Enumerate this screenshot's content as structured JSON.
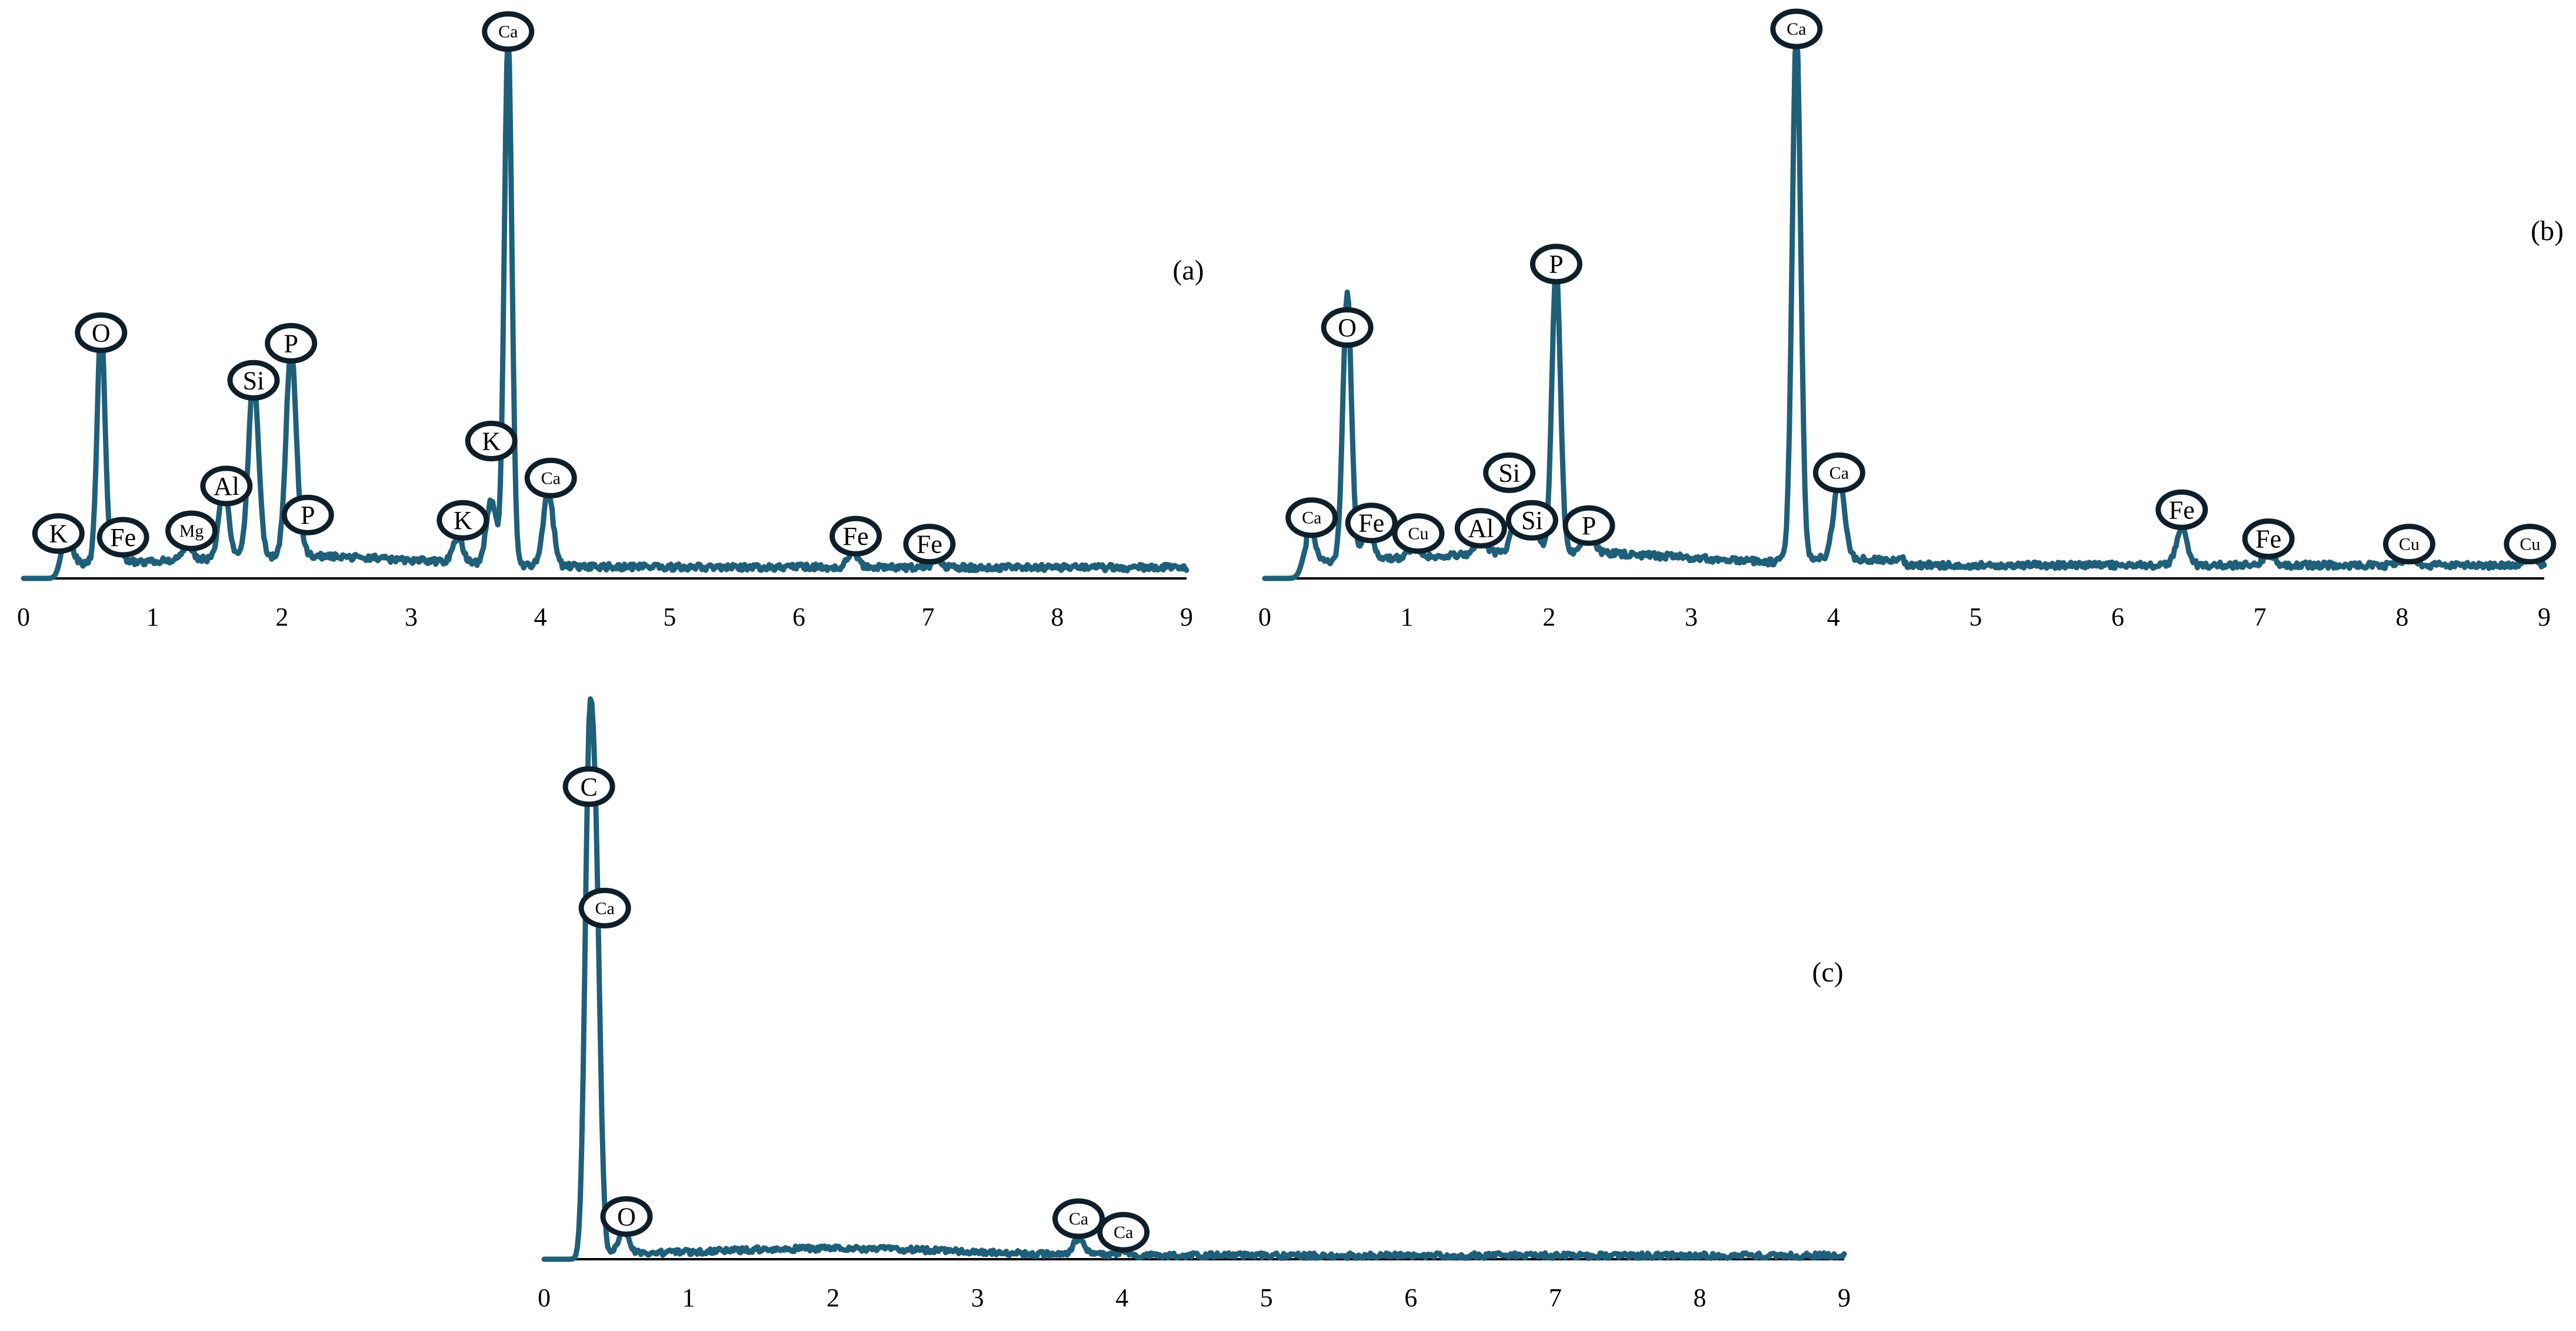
{
  "chart_data": [
    {
      "id": "a",
      "type": "line",
      "panel_label": "(a)",
      "title": "",
      "xlabel": "",
      "ylabel": "",
      "xlim": [
        0,
        9
      ],
      "ylim": [
        0,
        100
      ],
      "xticks": [
        "0",
        "1",
        "2",
        "3",
        "4",
        "5",
        "6",
        "7",
        "8",
        "9"
      ],
      "grid": false,
      "peaks": [
        {
          "element": "K",
          "x": 0.33,
          "y": 8
        },
        {
          "element": "O",
          "x": 0.6,
          "y": 46
        },
        {
          "element": "Fe",
          "x": 0.72,
          "y": 4
        },
        {
          "element": "Mg",
          "x": 1.27,
          "y": 3
        },
        {
          "element": "Al",
          "x": 1.55,
          "y": 13
        },
        {
          "element": "Si",
          "x": 1.78,
          "y": 34
        },
        {
          "element": "P",
          "x": 2.07,
          "y": 39
        },
        {
          "element": "P",
          "x": 2.14,
          "y": 2
        },
        {
          "element": "K",
          "x": 3.36,
          "y": 5
        },
        {
          "element": "K",
          "x": 3.62,
          "y": 12
        },
        {
          "element": "Ca",
          "x": 3.75,
          "y": 100
        },
        {
          "element": "Ca",
          "x": 4.06,
          "y": 14
        },
        {
          "element": "Fe",
          "x": 6.42,
          "y": 3
        },
        {
          "element": "Fe",
          "x": 7.06,
          "y": 1
        }
      ],
      "labels": [
        {
          "element": "K",
          "x": 0.27,
          "y": 8.5
        },
        {
          "element": "O",
          "x": 0.6,
          "y": 46.5
        },
        {
          "element": "Fe",
          "x": 0.77,
          "y": 7.8
        },
        {
          "element": "Mg",
          "x": 1.3,
          "y": 9
        },
        {
          "element": "Al",
          "x": 1.57,
          "y": 17.5
        },
        {
          "element": "Si",
          "x": 1.78,
          "y": 37.5
        },
        {
          "element": "P",
          "x": 2.07,
          "y": 44.5
        },
        {
          "element": "P",
          "x": 2.2,
          "y": 12
        },
        {
          "element": "K",
          "x": 3.4,
          "y": 11
        },
        {
          "element": "K",
          "x": 3.62,
          "y": 26
        },
        {
          "element": "Ca",
          "x": 3.75,
          "y": 103.5
        },
        {
          "element": "Ca",
          "x": 4.08,
          "y": 19
        },
        {
          "element": "Fe",
          "x": 6.44,
          "y": 8
        },
        {
          "element": "Fe",
          "x": 7.01,
          "y": 6.5
        }
      ]
    },
    {
      "id": "b",
      "type": "line",
      "panel_label": "(b)",
      "title": "",
      "xlabel": "",
      "ylabel": "",
      "xlim": [
        0,
        9
      ],
      "ylim": [
        0,
        100
      ],
      "xticks": [
        "0",
        "1",
        "2",
        "3",
        "4",
        "5",
        "6",
        "7",
        "8",
        "9"
      ],
      "grid": false,
      "peaks": [
        {
          "element": "Ca",
          "x": 0.31,
          "y": 7
        },
        {
          "element": "O",
          "x": 0.58,
          "y": 51
        },
        {
          "element": "Fe",
          "x": 0.72,
          "y": 6
        },
        {
          "element": "Cu",
          "x": 1.05,
          "y": 2
        },
        {
          "element": "Al",
          "x": 1.52,
          "y": 3
        },
        {
          "element": "Si",
          "x": 1.78,
          "y": 8
        },
        {
          "element": "Si",
          "x": 1.88,
          "y": 6
        },
        {
          "element": "P",
          "x": 2.05,
          "y": 54
        },
        {
          "element": "P",
          "x": 2.28,
          "y": 4
        },
        {
          "element": "Ca",
          "x": 3.74,
          "y": 100
        },
        {
          "element": "Ca",
          "x": 4.04,
          "y": 15
        },
        {
          "element": "Fe",
          "x": 6.45,
          "y": 7
        },
        {
          "element": "Fe",
          "x": 7.06,
          "y": 2
        },
        {
          "element": "Cu",
          "x": 8.05,
          "y": 1.5
        },
        {
          "element": "Cu",
          "x": 8.9,
          "y": 1.5
        }
      ],
      "labels": [
        {
          "element": "Ca",
          "x": 0.33,
          "y": 11.5
        },
        {
          "element": "O",
          "x": 0.58,
          "y": 47.5
        },
        {
          "element": "Fe",
          "x": 0.75,
          "y": 10.5
        },
        {
          "element": "Cu",
          "x": 1.08,
          "y": 8.5
        },
        {
          "element": "Al",
          "x": 1.52,
          "y": 9.5
        },
        {
          "element": "Si",
          "x": 1.72,
          "y": 20
        },
        {
          "element": "Si",
          "x": 1.88,
          "y": 11
        },
        {
          "element": "P",
          "x": 2.05,
          "y": 59.5
        },
        {
          "element": "P",
          "x": 2.28,
          "y": 10
        },
        {
          "element": "Ca",
          "x": 3.74,
          "y": 104
        },
        {
          "element": "Ca",
          "x": 4.04,
          "y": 20
        },
        {
          "element": "Fe",
          "x": 6.45,
          "y": 13
        },
        {
          "element": "Fe",
          "x": 7.06,
          "y": 7.5
        },
        {
          "element": "Cu",
          "x": 8.05,
          "y": 6.5
        },
        {
          "element": "Cu",
          "x": 8.9,
          "y": 6.5
        }
      ]
    },
    {
      "id": "c",
      "type": "line",
      "panel_label": "(c)",
      "title": "",
      "xlabel": "",
      "ylabel": "",
      "xlim": [
        0,
        9
      ],
      "ylim": [
        0,
        100
      ],
      "xticks": [
        "0",
        "1",
        "2",
        "3",
        "4",
        "5",
        "6",
        "7",
        "8",
        "9"
      ],
      "grid": false,
      "peaks": [
        {
          "element": "C",
          "x": 0.31,
          "y": 100
        },
        {
          "element": "Ca",
          "x": 0.36,
          "y": 72
        },
        {
          "element": "O",
          "x": 0.55,
          "y": 5
        },
        {
          "element": "Ca",
          "x": 3.7,
          "y": 3.5
        },
        {
          "element": "Ca",
          "x": 4.01,
          "y": 1
        }
      ],
      "labels": [
        {
          "element": "C",
          "x": 0.31,
          "y": 105
        },
        {
          "element": "Ca",
          "x": 0.42,
          "y": 78
        },
        {
          "element": "O",
          "x": 0.57,
          "y": 9.5
        },
        {
          "element": "Ca",
          "x": 3.7,
          "y": 9
        },
        {
          "element": "Ca",
          "x": 4.01,
          "y": 6
        }
      ]
    }
  ]
}
